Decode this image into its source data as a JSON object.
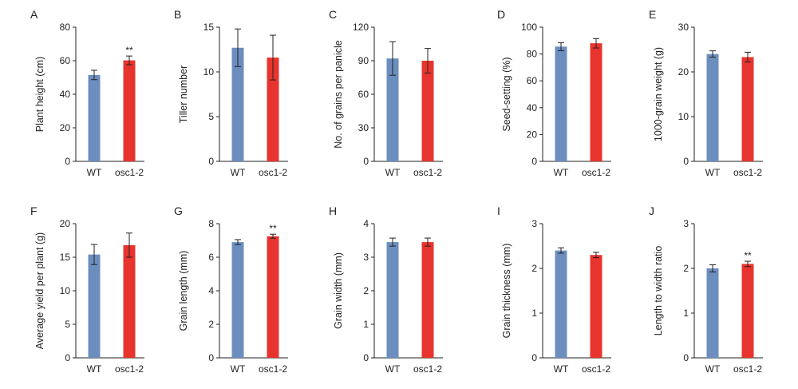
{
  "colors": {
    "wt": "#6c8ebf",
    "mutant": "#e8342e",
    "axis": "#222222"
  },
  "chart_data": [
    {
      "panel": "A",
      "type": "bar",
      "categories": [
        "WT",
        "osc1-2"
      ],
      "values": [
        51.5,
        60.2
      ],
      "errors": [
        2.8,
        2.6
      ],
      "ylabel": "Plant height (cm)",
      "ylim": [
        0,
        80
      ],
      "yticks": [
        0,
        20,
        40,
        60,
        80
      ],
      "yticklabels": [
        "0",
        "20",
        "40",
        "60",
        "80"
      ],
      "annotations": [
        "",
        "**"
      ]
    },
    {
      "panel": "B",
      "type": "bar",
      "categories": [
        "WT",
        "osc1-2"
      ],
      "values": [
        12.7,
        11.6
      ],
      "errors": [
        2.1,
        2.5
      ],
      "ylabel": "Tiller number",
      "ylim": [
        0,
        15
      ],
      "yticks": [
        0,
        5,
        10,
        15
      ],
      "yticklabels": [
        "0",
        "5",
        "10",
        "15"
      ],
      "annotations": [
        "",
        ""
      ]
    },
    {
      "panel": "C",
      "type": "bar",
      "categories": [
        "WT",
        "osc1-2"
      ],
      "values": [
        92,
        90
      ],
      "errors": [
        15,
        11
      ],
      "ylabel": "No. of grains per panicle",
      "ylim": [
        0,
        120
      ],
      "yticks": [
        0,
        30,
        60,
        90,
        120
      ],
      "yticklabels": [
        "0",
        "30",
        "60",
        "90",
        "120"
      ],
      "annotations": [
        "",
        ""
      ]
    },
    {
      "panel": "D",
      "type": "bar",
      "categories": [
        "WT",
        "osc1-2"
      ],
      "values": [
        85.5,
        88
      ],
      "errors": [
        3,
        3.5
      ],
      "ylabel": "Seed-setting (%)",
      "ylim": [
        0,
        100
      ],
      "yticks": [
        0,
        20,
        40,
        60,
        80,
        100
      ],
      "yticklabels": [
        "0",
        "20",
        "40",
        "60",
        "80",
        "100"
      ],
      "annotations": [
        "",
        ""
      ]
    },
    {
      "panel": "E",
      "type": "bar",
      "categories": [
        "WT",
        "osc1-2"
      ],
      "values": [
        24,
        23.3
      ],
      "errors": [
        0.7,
        1.1
      ],
      "ylabel": "1000-grain weight (g)",
      "ylim": [
        0,
        30
      ],
      "yticks": [
        0,
        10,
        20,
        30
      ],
      "yticklabels": [
        "0",
        "10",
        "20",
        "30"
      ],
      "annotations": [
        "",
        ""
      ]
    },
    {
      "panel": "F",
      "type": "bar",
      "categories": [
        "WT",
        "osc1-2"
      ],
      "values": [
        15.4,
        16.8
      ],
      "errors": [
        1.5,
        1.8
      ],
      "ylabel": "Average yield per plant (g)",
      "ylim": [
        0,
        20
      ],
      "yticks": [
        0,
        5,
        10,
        15,
        20
      ],
      "yticklabels": [
        "0",
        "5",
        "10",
        "15",
        "20"
      ],
      "annotations": [
        "",
        ""
      ]
    },
    {
      "panel": "G",
      "type": "bar",
      "categories": [
        "WT",
        "osc1-2"
      ],
      "values": [
        6.9,
        7.25
      ],
      "errors": [
        0.15,
        0.12
      ],
      "ylabel": "Grain length (mm)",
      "ylim": [
        0,
        8
      ],
      "yticks": [
        0,
        2,
        4,
        6,
        8
      ],
      "yticklabels": [
        "0",
        "2",
        "4",
        "6",
        "8"
      ],
      "annotations": [
        "",
        "**"
      ]
    },
    {
      "panel": "H",
      "type": "bar",
      "categories": [
        "WT",
        "osc1-2"
      ],
      "values": [
        3.45,
        3.45
      ],
      "errors": [
        0.12,
        0.12
      ],
      "ylabel": "Grain width (mm)",
      "ylim": [
        0,
        4
      ],
      "yticks": [
        0,
        1,
        2,
        3,
        4
      ],
      "yticklabels": [
        "0",
        "1",
        "2",
        "3",
        "4"
      ],
      "annotations": [
        "",
        ""
      ]
    },
    {
      "panel": "I",
      "type": "bar",
      "categories": [
        "WT",
        "osc1-2"
      ],
      "values": [
        2.4,
        2.3
      ],
      "errors": [
        0.06,
        0.06
      ],
      "ylabel": "Grain thickness (mm)",
      "ylim": [
        0,
        3
      ],
      "yticks": [
        0,
        1,
        2,
        3
      ],
      "yticklabels": [
        "0",
        "1",
        "2",
        "3"
      ],
      "annotations": [
        "",
        ""
      ]
    },
    {
      "panel": "J",
      "type": "bar",
      "categories": [
        "WT",
        "osc1-2"
      ],
      "values": [
        2.0,
        2.1
      ],
      "errors": [
        0.08,
        0.06
      ],
      "ylabel": "Length to width ratio",
      "ylim": [
        0,
        3
      ],
      "yticks": [
        0,
        1,
        2,
        3
      ],
      "yticklabels": [
        "0",
        "1",
        "2",
        "3"
      ],
      "annotations": [
        "",
        "**"
      ]
    }
  ]
}
